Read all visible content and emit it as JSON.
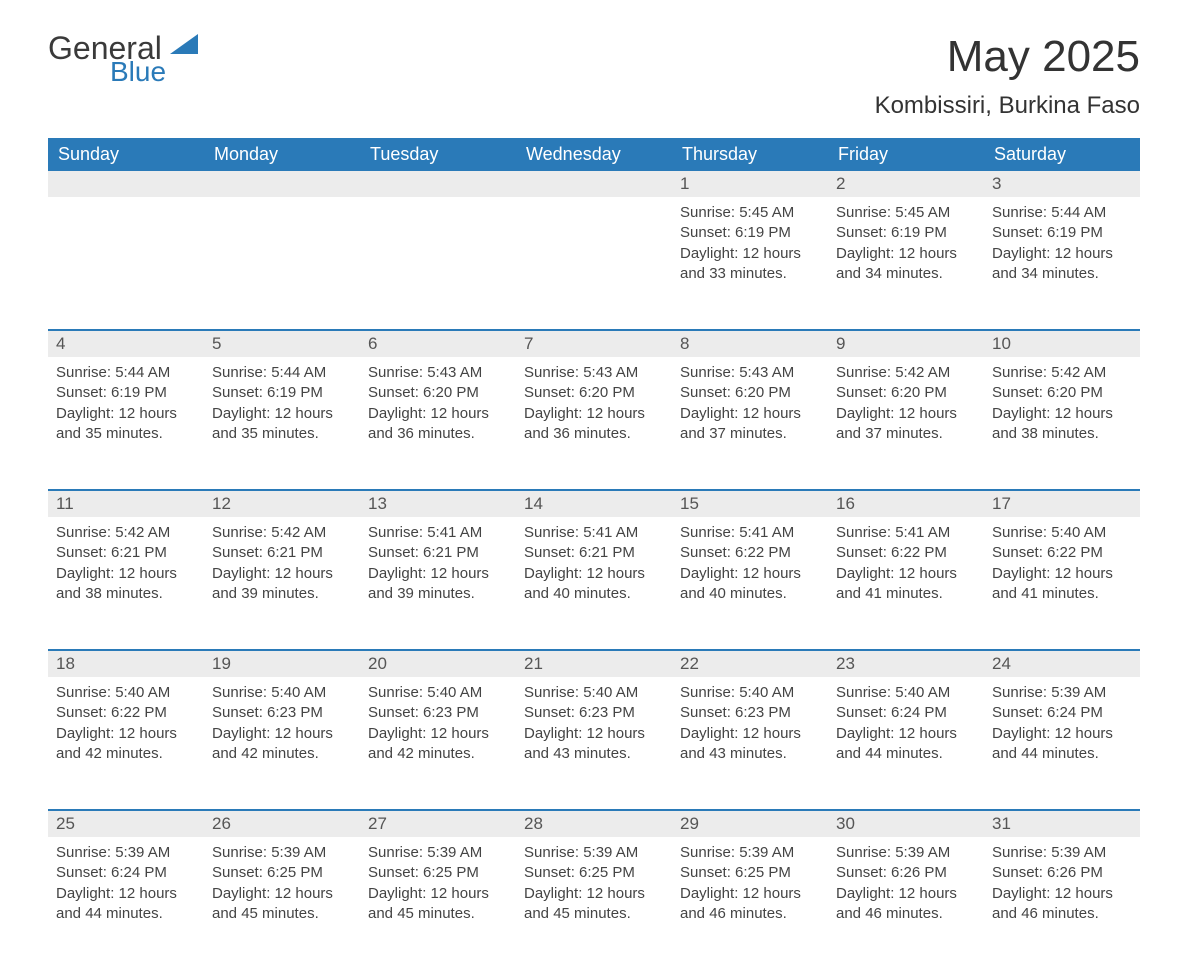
{
  "logo": {
    "general": "General",
    "blue": "Blue"
  },
  "title": "May 2025",
  "location": "Kombissiri, Burkina Faso",
  "colors": {
    "header_bg": "#2a7ab8",
    "header_text": "#ffffff",
    "daynum_bg": "#ececec",
    "body_text": "#444444",
    "page_bg": "#ffffff",
    "week_border": "#2a7ab8"
  },
  "fonts": {
    "title_size_pt": 33,
    "location_size_pt": 18,
    "dow_size_pt": 14,
    "daynum_size_pt": 13,
    "body_size_pt": 11
  },
  "days_of_week": [
    "Sunday",
    "Monday",
    "Tuesday",
    "Wednesday",
    "Thursday",
    "Friday",
    "Saturday"
  ],
  "weeks": [
    [
      null,
      null,
      null,
      null,
      {
        "n": "1",
        "sunrise": "5:45 AM",
        "sunset": "6:19 PM",
        "dl1": "Daylight: 12 hours",
        "dl2": "and 33 minutes."
      },
      {
        "n": "2",
        "sunrise": "5:45 AM",
        "sunset": "6:19 PM",
        "dl1": "Daylight: 12 hours",
        "dl2": "and 34 minutes."
      },
      {
        "n": "3",
        "sunrise": "5:44 AM",
        "sunset": "6:19 PM",
        "dl1": "Daylight: 12 hours",
        "dl2": "and 34 minutes."
      }
    ],
    [
      {
        "n": "4",
        "sunrise": "5:44 AM",
        "sunset": "6:19 PM",
        "dl1": "Daylight: 12 hours",
        "dl2": "and 35 minutes."
      },
      {
        "n": "5",
        "sunrise": "5:44 AM",
        "sunset": "6:19 PM",
        "dl1": "Daylight: 12 hours",
        "dl2": "and 35 minutes."
      },
      {
        "n": "6",
        "sunrise": "5:43 AM",
        "sunset": "6:20 PM",
        "dl1": "Daylight: 12 hours",
        "dl2": "and 36 minutes."
      },
      {
        "n": "7",
        "sunrise": "5:43 AM",
        "sunset": "6:20 PM",
        "dl1": "Daylight: 12 hours",
        "dl2": "and 36 minutes."
      },
      {
        "n": "8",
        "sunrise": "5:43 AM",
        "sunset": "6:20 PM",
        "dl1": "Daylight: 12 hours",
        "dl2": "and 37 minutes."
      },
      {
        "n": "9",
        "sunrise": "5:42 AM",
        "sunset": "6:20 PM",
        "dl1": "Daylight: 12 hours",
        "dl2": "and 37 minutes."
      },
      {
        "n": "10",
        "sunrise": "5:42 AM",
        "sunset": "6:20 PM",
        "dl1": "Daylight: 12 hours",
        "dl2": "and 38 minutes."
      }
    ],
    [
      {
        "n": "11",
        "sunrise": "5:42 AM",
        "sunset": "6:21 PM",
        "dl1": "Daylight: 12 hours",
        "dl2": "and 38 minutes."
      },
      {
        "n": "12",
        "sunrise": "5:42 AM",
        "sunset": "6:21 PM",
        "dl1": "Daylight: 12 hours",
        "dl2": "and 39 minutes."
      },
      {
        "n": "13",
        "sunrise": "5:41 AM",
        "sunset": "6:21 PM",
        "dl1": "Daylight: 12 hours",
        "dl2": "and 39 minutes."
      },
      {
        "n": "14",
        "sunrise": "5:41 AM",
        "sunset": "6:21 PM",
        "dl1": "Daylight: 12 hours",
        "dl2": "and 40 minutes."
      },
      {
        "n": "15",
        "sunrise": "5:41 AM",
        "sunset": "6:22 PM",
        "dl1": "Daylight: 12 hours",
        "dl2": "and 40 minutes."
      },
      {
        "n": "16",
        "sunrise": "5:41 AM",
        "sunset": "6:22 PM",
        "dl1": "Daylight: 12 hours",
        "dl2": "and 41 minutes."
      },
      {
        "n": "17",
        "sunrise": "5:40 AM",
        "sunset": "6:22 PM",
        "dl1": "Daylight: 12 hours",
        "dl2": "and 41 minutes."
      }
    ],
    [
      {
        "n": "18",
        "sunrise": "5:40 AM",
        "sunset": "6:22 PM",
        "dl1": "Daylight: 12 hours",
        "dl2": "and 42 minutes."
      },
      {
        "n": "19",
        "sunrise": "5:40 AM",
        "sunset": "6:23 PM",
        "dl1": "Daylight: 12 hours",
        "dl2": "and 42 minutes."
      },
      {
        "n": "20",
        "sunrise": "5:40 AM",
        "sunset": "6:23 PM",
        "dl1": "Daylight: 12 hours",
        "dl2": "and 42 minutes."
      },
      {
        "n": "21",
        "sunrise": "5:40 AM",
        "sunset": "6:23 PM",
        "dl1": "Daylight: 12 hours",
        "dl2": "and 43 minutes."
      },
      {
        "n": "22",
        "sunrise": "5:40 AM",
        "sunset": "6:23 PM",
        "dl1": "Daylight: 12 hours",
        "dl2": "and 43 minutes."
      },
      {
        "n": "23",
        "sunrise": "5:40 AM",
        "sunset": "6:24 PM",
        "dl1": "Daylight: 12 hours",
        "dl2": "and 44 minutes."
      },
      {
        "n": "24",
        "sunrise": "5:39 AM",
        "sunset": "6:24 PM",
        "dl1": "Daylight: 12 hours",
        "dl2": "and 44 minutes."
      }
    ],
    [
      {
        "n": "25",
        "sunrise": "5:39 AM",
        "sunset": "6:24 PM",
        "dl1": "Daylight: 12 hours",
        "dl2": "and 44 minutes."
      },
      {
        "n": "26",
        "sunrise": "5:39 AM",
        "sunset": "6:25 PM",
        "dl1": "Daylight: 12 hours",
        "dl2": "and 45 minutes."
      },
      {
        "n": "27",
        "sunrise": "5:39 AM",
        "sunset": "6:25 PM",
        "dl1": "Daylight: 12 hours",
        "dl2": "and 45 minutes."
      },
      {
        "n": "28",
        "sunrise": "5:39 AM",
        "sunset": "6:25 PM",
        "dl1": "Daylight: 12 hours",
        "dl2": "and 45 minutes."
      },
      {
        "n": "29",
        "sunrise": "5:39 AM",
        "sunset": "6:25 PM",
        "dl1": "Daylight: 12 hours",
        "dl2": "and 46 minutes."
      },
      {
        "n": "30",
        "sunrise": "5:39 AM",
        "sunset": "6:26 PM",
        "dl1": "Daylight: 12 hours",
        "dl2": "and 46 minutes."
      },
      {
        "n": "31",
        "sunrise": "5:39 AM",
        "sunset": "6:26 PM",
        "dl1": "Daylight: 12 hours",
        "dl2": "and 46 minutes."
      }
    ]
  ],
  "labels": {
    "sunrise_prefix": "Sunrise: ",
    "sunset_prefix": "Sunset: "
  }
}
